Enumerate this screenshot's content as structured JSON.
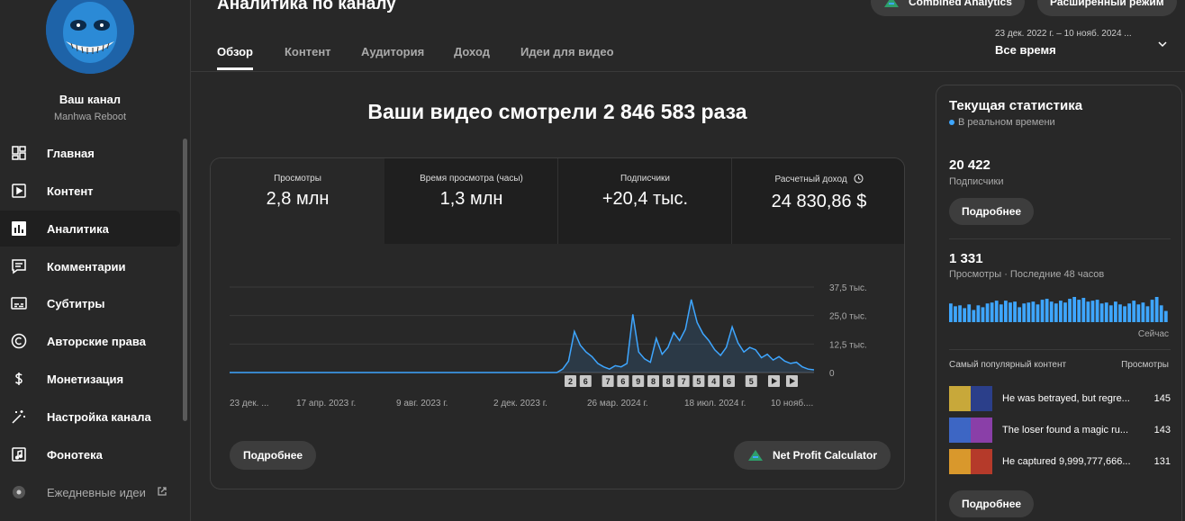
{
  "sidebar": {
    "channel_name": "Ваш канал",
    "channel_handle": "Manhwa Reboot",
    "items": [
      {
        "label": "Главная",
        "icon": "dashboard-icon"
      },
      {
        "label": "Контент",
        "icon": "content-icon"
      },
      {
        "label": "Аналитика",
        "icon": "analytics-icon"
      },
      {
        "label": "Комментарии",
        "icon": "comments-icon"
      },
      {
        "label": "Субтитры",
        "icon": "subtitles-icon"
      },
      {
        "label": "Авторские права",
        "icon": "copyright-icon"
      },
      {
        "label": "Монетизация",
        "icon": "monetization-icon"
      },
      {
        "label": "Настройка канала",
        "icon": "magic-wand-icon"
      },
      {
        "label": "Фонотека",
        "icon": "audio-library-icon"
      },
      {
        "label": "Ежедневные идеи",
        "icon": "daily-ideas-icon"
      }
    ]
  },
  "header": {
    "title": "Аналитика по каналу",
    "combined_btn": "Combined Analytics",
    "advanced_btn": "Расширенный режим",
    "tabs": [
      "Обзор",
      "Контент",
      "Аудитория",
      "Доход",
      "Идеи для видео"
    ],
    "date_range": "23 дек. 2022 г. – 10 нояб. 2024 ...",
    "date_label": "Все время"
  },
  "main": {
    "headline": "Ваши видео смотрели 2 846 583 раза",
    "kpis": [
      {
        "label": "Просмотры",
        "value": "2,8 млн"
      },
      {
        "label": "Время просмотра (часы)",
        "value": "1,3 млн"
      },
      {
        "label": "Подписчики",
        "value": "+20,4 тыс."
      },
      {
        "label": "Расчетный доход",
        "value": "24 830,86 $"
      }
    ],
    "more_btn": "Подробнее",
    "net_profit_btn": "Net Profit Calculator"
  },
  "chart_data": {
    "type": "area",
    "y_ticks": [
      "37,5 тыс.",
      "25,0 тыс.",
      "12,5 тыс.",
      "0"
    ],
    "ylim": [
      0,
      37500
    ],
    "x_ticks": [
      "23 дек. ...",
      "17 апр. 2023 г.",
      "9 авг. 2023 г.",
      "2 дек. 2023 г.",
      "26 мар. 2024 г.",
      "18 июл. 2024 г.",
      "10 нояб...."
    ],
    "x_index": [
      0,
      5,
      10,
      15,
      20,
      25,
      29,
      30,
      31,
      32,
      34,
      35,
      36,
      37,
      38,
      39,
      40,
      41,
      42,
      43,
      44,
      45,
      46,
      47,
      48,
      49,
      50,
      51,
      52,
      53,
      54,
      55,
      56,
      57,
      58,
      59,
      60,
      61,
      62,
      63,
      64,
      65,
      66,
      67,
      68,
      69,
      70,
      71,
      72,
      73,
      74,
      75,
      76,
      77,
      78,
      79,
      80,
      81,
      82,
      83,
      84,
      85,
      86,
      87,
      88,
      89,
      90,
      91,
      92,
      93,
      94,
      95,
      96,
      97,
      98,
      99,
      100
    ],
    "values": [
      0,
      0,
      0,
      0,
      0,
      0,
      0,
      0,
      0,
      0,
      0,
      0,
      0,
      0,
      0,
      0,
      0,
      0,
      0,
      0,
      0,
      0,
      0,
      0,
      0,
      0,
      0,
      0,
      0,
      0,
      0,
      0,
      0,
      1500,
      5000,
      18000,
      12000,
      9000,
      7000,
      4000,
      2500,
      1500,
      3000,
      2500,
      4000,
      25500,
      9000,
      6000,
      4500,
      15000,
      8000,
      11000,
      17500,
      14000,
      19000,
      32000,
      22000,
      17000,
      14000,
      10000,
      7500,
      11000,
      20000,
      13000,
      9000,
      11000,
      10000,
      6500,
      8000,
      5500,
      7000,
      5000,
      4000,
      4500,
      2500,
      1500,
      1200
    ],
    "annotation_markers": [
      "2",
      "6",
      "7",
      "6",
      "9",
      "8",
      "8",
      "7",
      "5",
      "4",
      "6",
      "5"
    ]
  },
  "realtime": {
    "title": "Текущая статистика",
    "subtitle": "В реальном времени",
    "subs_value": "20 422",
    "subs_label": "Подписчики",
    "btn": "Подробнее",
    "views_value": "1 331",
    "views_label": "Просмотры · Последние 48 часов",
    "now_label": "Сейчас",
    "bars": [
      20,
      17,
      18,
      15,
      19,
      13,
      18,
      16,
      20,
      21,
      23,
      19,
      23,
      21,
      22,
      16,
      20,
      21,
      22,
      19,
      24,
      25,
      22,
      20,
      23,
      21,
      25,
      27,
      24,
      26,
      22,
      23,
      24,
      20,
      21,
      18,
      22,
      19,
      17,
      20,
      23,
      19,
      21,
      17,
      24,
      27,
      18,
      12
    ],
    "popular_header": "Самый популярный контент",
    "popular_metric": "Просмотры",
    "popular": [
      {
        "title": "He was betrayed, but regre...",
        "views": "145"
      },
      {
        "title": "The loser found a magic ru...",
        "views": "143"
      },
      {
        "title": "He captured 9,999,777,666...",
        "views": "131"
      }
    ]
  },
  "colors": {
    "accent": "#3ea6ff",
    "bg": "#282828",
    "panel": "#1f1f1f"
  }
}
